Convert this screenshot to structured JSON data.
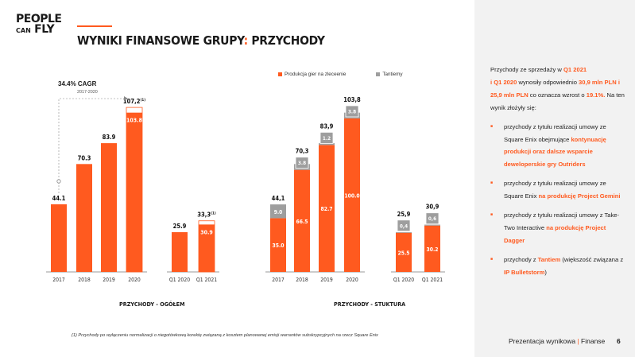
{
  "logo": {
    "line1": "PEOPLE",
    "line2_small": "CAN",
    "line2_big": "FLY"
  },
  "header": {
    "title_a": "WYNIKI FINANSOWE GRUPY",
    "title_colon": ":",
    "title_b": " PRZYCHODY"
  },
  "colors": {
    "accent": "#ff5a1f",
    "tantiemy": "#9e9e9e",
    "sidebar_bg": "#f2f2f2"
  },
  "cagr": {
    "label": "34.4% CAGR",
    "period": "2017-2020"
  },
  "legend": {
    "a": "Produkcja gier na zleceenie",
    "b": "Tantiemy"
  },
  "chart_data": [
    {
      "type": "bar",
      "title": "PRZYCHODY - OGÓŁEM",
      "groups": [
        {
          "categories": [
            "2017",
            "2018",
            "2019",
            "2020"
          ],
          "values": [
            44.1,
            70.3,
            83.9,
            107.2
          ],
          "labels": [
            "44.1",
            "70.3",
            "83.9",
            "107,2"
          ],
          "label_sup": [
            "",
            "",
            "",
            "(1)"
          ],
          "note_segments": [
            null,
            null,
            null,
            {
              "value": 103.8,
              "label": "103.8"
            }
          ]
        },
        {
          "categories": [
            "Q1 2020",
            "Q1 2021"
          ],
          "values": [
            25.9,
            33.3
          ],
          "labels": [
            "25.9",
            "33,3"
          ],
          "label_sup": [
            "",
            "(1)"
          ],
          "note_segments": [
            null,
            {
              "value": 30.9,
              "label": "30.9"
            }
          ]
        }
      ],
      "ylim": [
        0,
        110
      ]
    },
    {
      "type": "stacked_bar",
      "title": "PRZYCHODY - STUKTURA",
      "series": [
        "Produkcja gier na zleceenie",
        "Tantiemy"
      ],
      "groups": [
        {
          "categories": [
            "2017",
            "2018",
            "2019",
            "2020"
          ],
          "production": [
            35.0,
            66.5,
            82.7,
            100.0
          ],
          "production_labels": [
            "35.0",
            "66.5",
            "82.7",
            "100.0"
          ],
          "tantiemy": [
            9.0,
            3.8,
            1.2,
            3.8
          ],
          "tantiemy_labels": [
            "9.0",
            "3.8",
            "1.2",
            "3.8"
          ],
          "totals": [
            "44,1",
            "70,3",
            "83,9",
            "103,8"
          ]
        },
        {
          "categories": [
            "Q1 2020",
            "Q1 2021"
          ],
          "production": [
            25.5,
            30.2
          ],
          "production_labels": [
            "25.5",
            "30.2"
          ],
          "tantiemy": [
            0.4,
            0.6
          ],
          "tantiemy_labels": [
            "0,4",
            "0,6"
          ],
          "totals": [
            "25,9",
            "30,9"
          ]
        }
      ],
      "ylim": [
        0,
        110
      ]
    }
  ],
  "sidebar": {
    "intro_1": "Przychody ze sprzedaży w ",
    "intro_hl_1": "Q1 2021",
    "intro_hl_2": "i Q1 2020",
    "intro_2": " wynosiły odpowiednio ",
    "intro_hl_3": "30,9 mln PLN i 25,9 mln PLN",
    "intro_3": " co oznacza wzrost o ",
    "intro_hl_4": "19.1%.",
    "intro_4": " Na ten wynik złożyły się:",
    "b1_a": "przychody z tytułu realizacji umowy ze Square Enix obejmujące ",
    "b1_hl": "kontynuację produkcji oraz dalsze wsparcie deweloperskie gry Outriders",
    "b2_a": "przychody z tytułu realizacji umowy ze Square Enix ",
    "b2_hl": "na produkcję Project Gemini",
    "b3_a": "przychody z tytułu realizacji umowy z Take-Two Interactive ",
    "b3_hl": "na produkcję Project Dagger",
    "b4_a": "przychody z ",
    "b4_hl1": "Tantiem",
    "b4_b": " (większość związana z ",
    "b4_hl2": "IP Bulletstorm",
    "b4_c": ")"
  },
  "footer": {
    "note": "(1) Przychody po wyłączeniu normalizacji o niegotówkową korektę związaną z kosztem planowanej emisji warrantów subskrypcyjnych na rzecz Square Enix",
    "brand_a": "Prezentacja wynikowa",
    "brand_sep": " | ",
    "brand_b": "Finanse",
    "page": "6"
  }
}
